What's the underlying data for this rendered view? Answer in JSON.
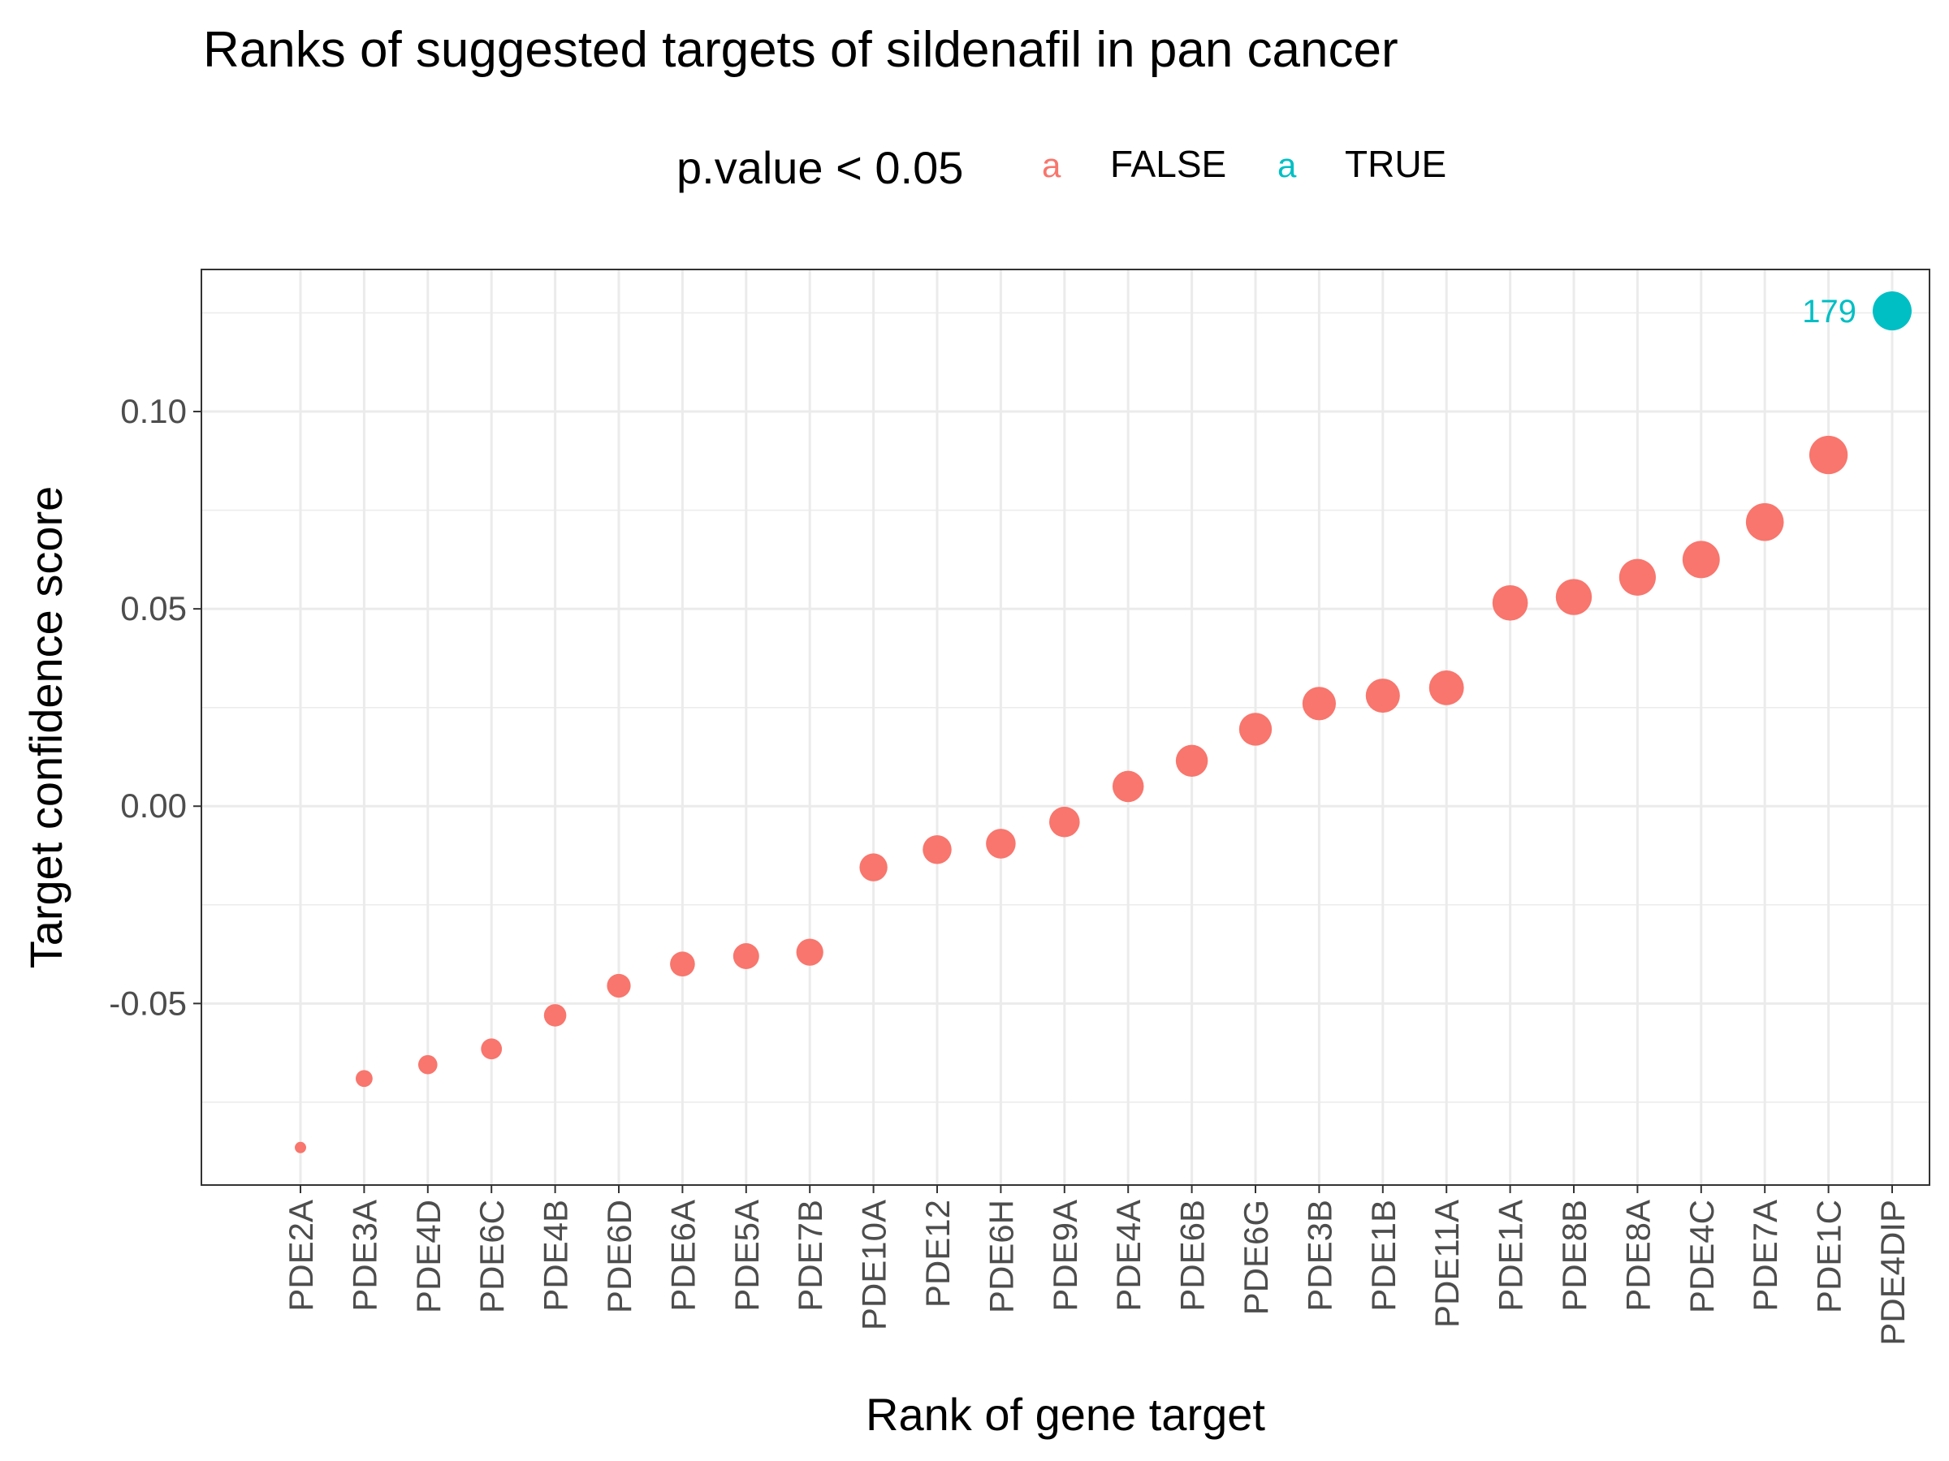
{
  "chart_data": {
    "type": "scatter",
    "title": "Ranks of suggested targets of sildenafil in pan cancer",
    "xlabel": "Rank of gene target",
    "ylabel": "Target confidence score",
    "legend": {
      "title": "p.value < 0.05",
      "placement": "top",
      "key_glyph": "a",
      "entries": [
        {
          "label": "FALSE",
          "color": "#F8766D"
        },
        {
          "label": "TRUE",
          "color": "#00BFC4"
        }
      ]
    },
    "grid": true,
    "ylim": [
      -0.096,
      0.136
    ],
    "y_ticks": [
      -0.05,
      0.0,
      0.05,
      0.1
    ],
    "y_tick_labels": [
      "-0.05",
      "0.00",
      "0.05",
      "0.10"
    ],
    "categories": [
      "PDE2A",
      "PDE3A",
      "PDE4D",
      "PDE6C",
      "PDE4B",
      "PDE6D",
      "PDE6A",
      "PDE5A",
      "PDE7B",
      "PDE10A",
      "PDE12",
      "PDE6H",
      "PDE9A",
      "PDE4A",
      "PDE6B",
      "PDE6G",
      "PDE3B",
      "PDE1B",
      "PDE11A",
      "PDE1A",
      "PDE8B",
      "PDE8A",
      "PDE4C",
      "PDE7A",
      "PDE1C",
      "PDE4DIP"
    ],
    "values": [
      -0.0865,
      -0.069,
      -0.0655,
      -0.0615,
      -0.053,
      -0.0455,
      -0.04,
      -0.038,
      -0.037,
      -0.0155,
      -0.011,
      -0.0095,
      -0.004,
      0.005,
      0.0115,
      0.0195,
      0.026,
      0.028,
      0.03,
      0.0515,
      0.053,
      0.058,
      0.0625,
      0.072,
      0.089,
      0.1255
    ],
    "significant": [
      false,
      false,
      false,
      false,
      false,
      false,
      false,
      false,
      false,
      false,
      false,
      false,
      false,
      false,
      false,
      false,
      false,
      false,
      false,
      false,
      false,
      false,
      false,
      false,
      false,
      true
    ],
    "annotations": [
      {
        "category": "PDE4DIP",
        "text": "179",
        "color": "#00BFC4"
      }
    ],
    "colors": {
      "FALSE": "#F8766D",
      "TRUE": "#00BFC4"
    }
  }
}
